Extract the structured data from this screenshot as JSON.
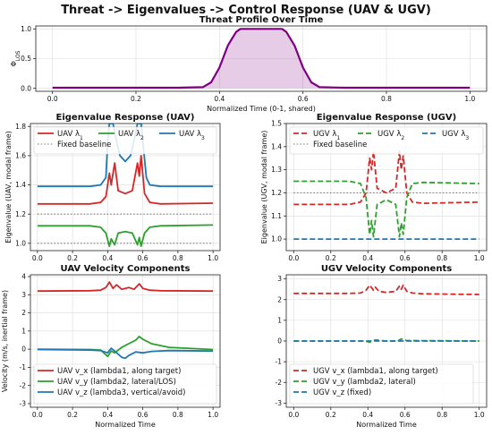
{
  "figure": {
    "title": "Threat -> Eigenvalues -> Control Response (UAV & UGV)"
  },
  "chart_data": [
    {
      "id": "threat",
      "type": "area",
      "title": "Threat Profile Over Time",
      "xlabel": "Normalized Time (0-1, shared)",
      "ylabel": "Φ_LOS",
      "xlim": [
        -0.04,
        1.04
      ],
      "ylim": [
        -0.05,
        1.05
      ],
      "xticks": [
        0.0,
        0.2,
        0.4,
        0.6,
        0.8,
        1.0
      ],
      "yticks": [
        0.0,
        0.5,
        1.0
      ],
      "grid": true,
      "series": [
        {
          "color": "#800080",
          "fill": "#800080",
          "points": [
            [
              0,
              0.01
            ],
            [
              0.3,
              0.01
            ],
            [
              0.36,
              0.02
            ],
            [
              0.38,
              0.1
            ],
            [
              0.4,
              0.35
            ],
            [
              0.42,
              0.72
            ],
            [
              0.44,
              0.95
            ],
            [
              0.45,
              1.0
            ],
            [
              0.55,
              1.0
            ],
            [
              0.56,
              0.95
            ],
            [
              0.58,
              0.72
            ],
            [
              0.6,
              0.35
            ],
            [
              0.62,
              0.1
            ],
            [
              0.64,
              0.02
            ],
            [
              0.7,
              0.01
            ],
            [
              1.0,
              0.01
            ]
          ]
        }
      ]
    },
    {
      "id": "uav_eig",
      "type": "line",
      "title": "Eigenvalue Response (UAV)",
      "xlabel": "",
      "ylabel": "Eigenvalue (UAV, modal frame)",
      "xlim": [
        -0.04,
        1.04
      ],
      "ylim": [
        0.95,
        1.82
      ],
      "xticks": [
        0.0,
        0.2,
        0.4,
        0.6,
        0.8,
        1.0
      ],
      "yticks": [
        1.0,
        1.2,
        1.4,
        1.6,
        1.8
      ],
      "grid": true,
      "legend": {
        "position": "top-left",
        "ncol": 3
      },
      "series": [
        {
          "name": "UAV λ1",
          "color": "#d62728",
          "style": "solid",
          "points": [
            [
              0,
              1.27
            ],
            [
              0.3,
              1.27
            ],
            [
              0.36,
              1.28
            ],
            [
              0.39,
              1.32
            ],
            [
              0.41,
              1.48
            ],
            [
              0.42,
              1.4
            ],
            [
              0.44,
              1.55
            ],
            [
              0.46,
              1.36
            ],
            [
              0.5,
              1.34
            ],
            [
              0.54,
              1.36
            ],
            [
              0.57,
              1.55
            ],
            [
              0.58,
              1.46
            ],
            [
              0.59,
              1.6
            ],
            [
              0.61,
              1.34
            ],
            [
              0.64,
              1.28
            ],
            [
              0.7,
              1.27
            ],
            [
              1.0,
              1.275
            ]
          ]
        },
        {
          "name": "UAV λ2",
          "color": "#2ca02c",
          "style": "solid",
          "points": [
            [
              0,
              1.12
            ],
            [
              0.3,
              1.12
            ],
            [
              0.36,
              1.11
            ],
            [
              0.39,
              1.07
            ],
            [
              0.41,
              0.98
            ],
            [
              0.42,
              1.03
            ],
            [
              0.44,
              0.99
            ],
            [
              0.46,
              1.07
            ],
            [
              0.5,
              1.08
            ],
            [
              0.54,
              1.07
            ],
            [
              0.57,
              0.99
            ],
            [
              0.58,
              1.04
            ],
            [
              0.59,
              0.98
            ],
            [
              0.61,
              1.07
            ],
            [
              0.64,
              1.11
            ],
            [
              0.7,
              1.12
            ],
            [
              1.0,
              1.125
            ]
          ]
        },
        {
          "name": "UAV λ3",
          "color": "#1f77b4",
          "style": "solid",
          "points": [
            [
              0,
              1.39
            ],
            [
              0.3,
              1.39
            ],
            [
              0.36,
              1.4
            ],
            [
              0.39,
              1.45
            ],
            [
              0.4,
              1.7
            ],
            [
              0.41,
              1.82
            ],
            [
              0.43,
              1.82
            ],
            [
              0.45,
              1.7
            ],
            [
              0.47,
              1.6
            ],
            [
              0.5,
              1.56
            ],
            [
              0.53,
              1.6
            ],
            [
              0.55,
              1.7
            ],
            [
              0.57,
              1.82
            ],
            [
              0.59,
              1.82
            ],
            [
              0.6,
              1.7
            ],
            [
              0.62,
              1.45
            ],
            [
              0.64,
              1.4
            ],
            [
              0.7,
              1.39
            ],
            [
              1.0,
              1.39
            ]
          ]
        },
        {
          "name": "Fixed baseline",
          "color": "#777777",
          "style": "dotted",
          "points": [
            [
              0,
              1.2
            ],
            [
              1,
              1.2
            ]
          ]
        },
        {
          "color": "#777777",
          "style": "dotted",
          "points": [
            [
              0,
              1.0
            ],
            [
              1,
              1.0
            ]
          ]
        }
      ]
    },
    {
      "id": "ugv_eig",
      "type": "line",
      "title": "Eigenvalue Response (UGV)",
      "xlabel": "",
      "ylabel": "Eigenvalue (UGV, modal frame)",
      "xlim": [
        -0.04,
        1.04
      ],
      "ylim": [
        0.95,
        1.5
      ],
      "xticks": [
        0.0,
        0.2,
        0.4,
        0.6,
        0.8,
        1.0
      ],
      "yticks": [
        1.0,
        1.1,
        1.2,
        1.3,
        1.4,
        1.5
      ],
      "grid": true,
      "legend": {
        "position": "top-left",
        "ncol": 3
      },
      "series": [
        {
          "name": "UGV λ1",
          "color": "#d62728",
          "style": "dashed",
          "points": [
            [
              0,
              1.15
            ],
            [
              0.3,
              1.15
            ],
            [
              0.36,
              1.16
            ],
            [
              0.39,
              1.2
            ],
            [
              0.41,
              1.35
            ],
            [
              0.42,
              1.3
            ],
            [
              0.43,
              1.38
            ],
            [
              0.45,
              1.22
            ],
            [
              0.5,
              1.2
            ],
            [
              0.55,
              1.22
            ],
            [
              0.57,
              1.38
            ],
            [
              0.58,
              1.3
            ],
            [
              0.59,
              1.36
            ],
            [
              0.61,
              1.2
            ],
            [
              0.64,
              1.16
            ],
            [
              0.7,
              1.155
            ],
            [
              1.0,
              1.16
            ]
          ]
        },
        {
          "name": "UGV λ2",
          "color": "#2ca02c",
          "style": "dashed",
          "points": [
            [
              0,
              1.25
            ],
            [
              0.3,
              1.25
            ],
            [
              0.36,
              1.24
            ],
            [
              0.39,
              1.18
            ],
            [
              0.41,
              1.02
            ],
            [
              0.42,
              1.08
            ],
            [
              0.43,
              1.01
            ],
            [
              0.45,
              1.15
            ],
            [
              0.5,
              1.17
            ],
            [
              0.55,
              1.15
            ],
            [
              0.57,
              1.01
            ],
            [
              0.58,
              1.07
            ],
            [
              0.59,
              1.02
            ],
            [
              0.61,
              1.18
            ],
            [
              0.64,
              1.24
            ],
            [
              0.7,
              1.245
            ],
            [
              1.0,
              1.24
            ]
          ]
        },
        {
          "name": "UGV λ3",
          "color": "#1f77b4",
          "style": "dashed",
          "points": [
            [
              0,
              1.0
            ],
            [
              1,
              1.0
            ]
          ]
        },
        {
          "name": "Fixed baseline",
          "color": "#777777",
          "style": "dotted",
          "points": [
            [
              0,
              1.2
            ],
            [
              1,
              1.2
            ]
          ]
        }
      ]
    },
    {
      "id": "uav_vel",
      "type": "line",
      "title": "UAV Velocity Components",
      "xlabel": "Normalized Time",
      "ylabel": "Velocity (m/s, inertial frame)",
      "xlim": [
        -0.04,
        1.04
      ],
      "ylim": [
        -3.2,
        4.1
      ],
      "xticks": [
        0.0,
        0.2,
        0.4,
        0.6,
        0.8,
        1.0
      ],
      "yticks": [
        -3,
        -2,
        -1,
        0,
        1,
        2,
        3,
        4
      ],
      "grid": true,
      "legend": {
        "position": "lower-left",
        "ncol": 1
      },
      "series": [
        {
          "name": "UAV v_x (lambda1, along target)",
          "color": "#d62728",
          "style": "solid",
          "points": [
            [
              0,
              3.2
            ],
            [
              0.3,
              3.22
            ],
            [
              0.36,
              3.25
            ],
            [
              0.39,
              3.4
            ],
            [
              0.41,
              3.7
            ],
            [
              0.43,
              3.35
            ],
            [
              0.45,
              3.55
            ],
            [
              0.48,
              3.3
            ],
            [
              0.52,
              3.4
            ],
            [
              0.55,
              3.3
            ],
            [
              0.58,
              3.6
            ],
            [
              0.6,
              3.35
            ],
            [
              0.64,
              3.25
            ],
            [
              0.7,
              3.22
            ],
            [
              1.0,
              3.2
            ]
          ]
        },
        {
          "name": "UAV v_y (lambda2, lateral/LOS)",
          "color": "#2ca02c",
          "style": "solid",
          "points": [
            [
              0,
              0.0
            ],
            [
              0.3,
              -0.02
            ],
            [
              0.36,
              -0.05
            ],
            [
              0.4,
              -0.4
            ],
            [
              0.42,
              -0.1
            ],
            [
              0.44,
              -0.2
            ],
            [
              0.48,
              0.1
            ],
            [
              0.52,
              0.3
            ],
            [
              0.56,
              0.5
            ],
            [
              0.58,
              0.7
            ],
            [
              0.6,
              0.55
            ],
            [
              0.65,
              0.3
            ],
            [
              0.75,
              0.1
            ],
            [
              1.0,
              -0.02
            ]
          ]
        },
        {
          "name": "UAV v_z (lambda3, vertical/avoid)",
          "color": "#1f77b4",
          "style": "solid",
          "points": [
            [
              0,
              -0.02
            ],
            [
              0.3,
              -0.05
            ],
            [
              0.36,
              -0.08
            ],
            [
              0.4,
              -0.2
            ],
            [
              0.42,
              0.05
            ],
            [
              0.44,
              -0.1
            ],
            [
              0.48,
              -0.45
            ],
            [
              0.5,
              -0.5
            ],
            [
              0.52,
              -0.35
            ],
            [
              0.56,
              -0.15
            ],
            [
              0.6,
              -0.2
            ],
            [
              0.65,
              -0.12
            ],
            [
              0.75,
              -0.08
            ],
            [
              1.0,
              -0.1
            ]
          ]
        }
      ]
    },
    {
      "id": "ugv_vel",
      "type": "line",
      "title": "UGV Velocity Components",
      "xlabel": "Normalized Time",
      "ylabel": "",
      "xlim": [
        -0.04,
        1.04
      ],
      "ylim": [
        -3.2,
        3.2
      ],
      "xticks": [
        0.0,
        0.2,
        0.4,
        0.6,
        0.8,
        1.0
      ],
      "yticks": [
        -3,
        -2,
        -1,
        0,
        1,
        2,
        3
      ],
      "grid": true,
      "legend": {
        "position": "lower-left",
        "ncol": 1
      },
      "series": [
        {
          "name": "UGV v_x (lambda1, along target)",
          "color": "#d62728",
          "style": "dashed",
          "points": [
            [
              0,
              2.3
            ],
            [
              0.3,
              2.3
            ],
            [
              0.36,
              2.32
            ],
            [
              0.39,
              2.45
            ],
            [
              0.41,
              2.7
            ],
            [
              0.43,
              2.45
            ],
            [
              0.44,
              2.6
            ],
            [
              0.46,
              2.4
            ],
            [
              0.5,
              2.35
            ],
            [
              0.55,
              2.4
            ],
            [
              0.57,
              2.65
            ],
            [
              0.58,
              2.5
            ],
            [
              0.59,
              2.7
            ],
            [
              0.61,
              2.4
            ],
            [
              0.64,
              2.32
            ],
            [
              0.7,
              2.28
            ],
            [
              1.0,
              2.25
            ]
          ]
        },
        {
          "name": "UGV v_y (lambda2, lateral)",
          "color": "#2ca02c",
          "style": "dashed",
          "points": [
            [
              0,
              0.0
            ],
            [
              0.38,
              0.0
            ],
            [
              0.41,
              -0.05
            ],
            [
              0.44,
              0.05
            ],
            [
              0.5,
              0.0
            ],
            [
              0.56,
              0.0
            ],
            [
              0.58,
              0.1
            ],
            [
              0.61,
              0.02
            ],
            [
              1.0,
              0.0
            ]
          ]
        },
        {
          "name": "UGV v_z (fixed)",
          "color": "#1f77b4",
          "style": "dashed",
          "points": [
            [
              0,
              0.0
            ],
            [
              1.0,
              0.0
            ]
          ]
        }
      ]
    }
  ]
}
